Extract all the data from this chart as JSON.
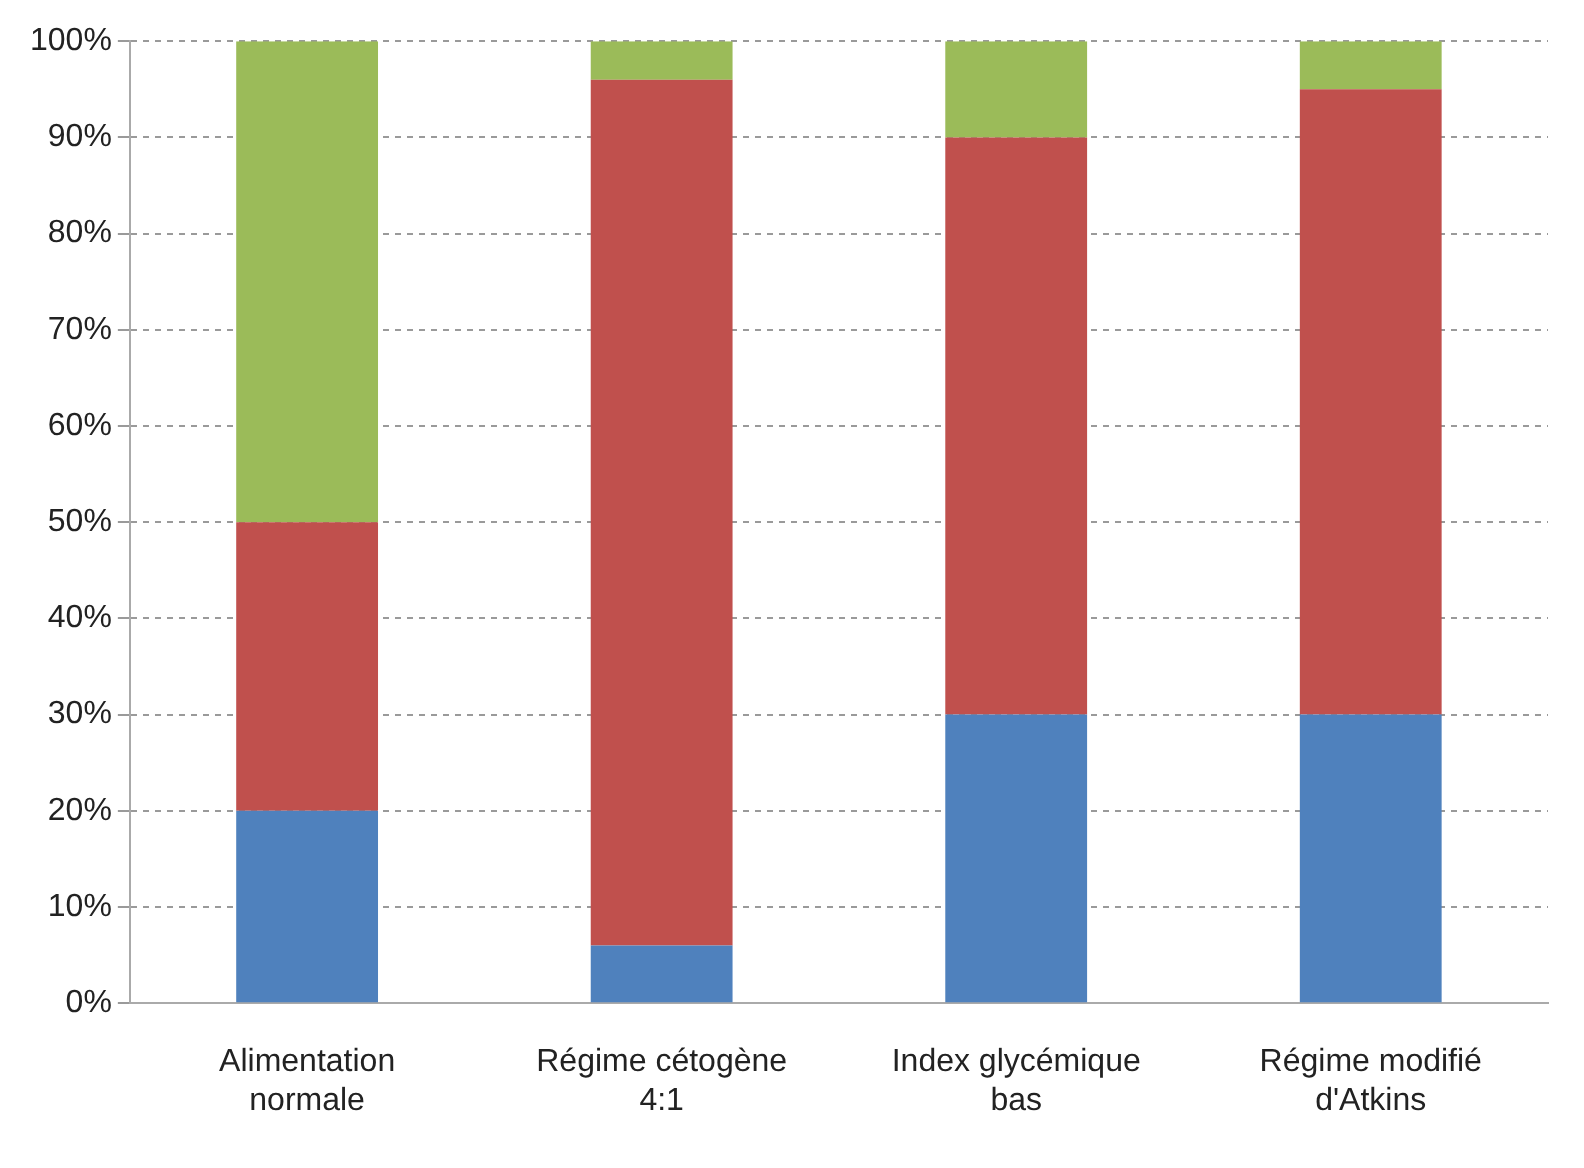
{
  "chart_data": {
    "type": "bar",
    "stacked": true,
    "categories": [
      "Alimentation normale",
      "Régime cétogène 4:1",
      "Index glycémique bas",
      "Régime modifié d'Atkins"
    ],
    "series": [
      {
        "color": "#4f81bd",
        "values": [
          20,
          6,
          30,
          30
        ]
      },
      {
        "color": "#c0504d",
        "values": [
          30,
          90,
          60,
          65
        ]
      },
      {
        "color": "#9bbb59",
        "values": [
          50,
          4,
          10,
          5
        ]
      }
    ],
    "ylim": [
      0,
      100
    ],
    "yticks": [
      {
        "value": 0,
        "label": "0%"
      },
      {
        "value": 10,
        "label": "10%"
      },
      {
        "value": 20,
        "label": "20%"
      },
      {
        "value": 30,
        "label": "30%"
      },
      {
        "value": 40,
        "label": "40%"
      },
      {
        "value": 50,
        "label": "50%"
      },
      {
        "value": 60,
        "label": "60%"
      },
      {
        "value": 70,
        "label": "70%"
      },
      {
        "value": 80,
        "label": "80%"
      },
      {
        "value": 90,
        "label": "90%"
      },
      {
        "value": 100,
        "label": "100%"
      }
    ],
    "grid": "y",
    "legend": false
  }
}
